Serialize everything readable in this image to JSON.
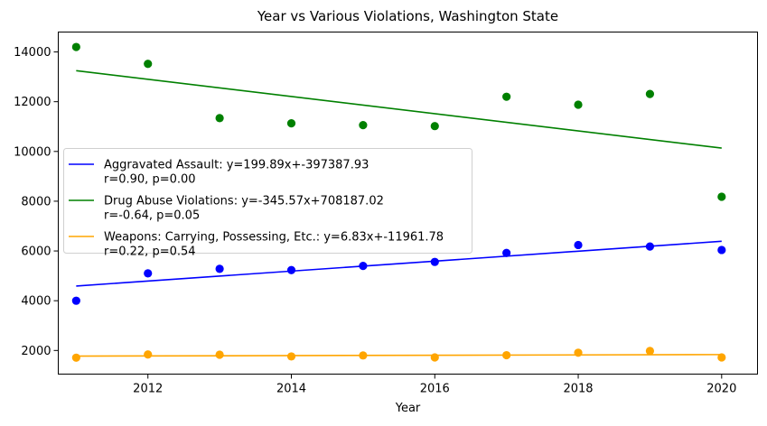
{
  "chart_data": {
    "type": "scatter",
    "title": "Year vs Various Violations, Washington State",
    "xlabel": "Year",
    "ylabel": "",
    "xlim": [
      2010.75,
      2020.5
    ],
    "ylim": [
      1050,
      14800
    ],
    "xticks": [
      2012,
      2014,
      2016,
      2018,
      2020
    ],
    "yticks": [
      2000,
      4000,
      6000,
      8000,
      10000,
      12000,
      14000
    ],
    "x": [
      2011,
      2012,
      2013,
      2014,
      2015,
      2016,
      2017,
      2018,
      2019,
      2020
    ],
    "series": [
      {
        "color": "#0000ff",
        "values": [
          4000,
          5100,
          5280,
          5230,
          5400,
          5560,
          5920,
          6240,
          6180,
          6040
        ],
        "fit": {
          "slope": 199.89,
          "intercept": -397387.93
        },
        "legend_line1": "Aggravated Assault: y=199.89x+-397387.93",
        "legend_line2": "r=0.90, p=0.00"
      },
      {
        "color": "#008000",
        "values": [
          14200,
          13520,
          11340,
          11130,
          11060,
          11020,
          12200,
          11880,
          12310,
          8180
        ],
        "fit": {
          "slope": -345.57,
          "intercept": 708187.02
        },
        "legend_line1": "Drug Abuse Violations: y=-345.57x+708187.02",
        "legend_line2": "r=-0.64, p=0.05"
      },
      {
        "color": "#ffa500",
        "values": [
          1710,
          1840,
          1830,
          1760,
          1800,
          1720,
          1810,
          1910,
          1980,
          1720
        ],
        "fit": {
          "slope": 6.83,
          "intercept": -11961.78
        },
        "legend_line1": "Weapons: Carrying, Possessing, Etc.: y=6.83x+-11961.78",
        "legend_line2": "r=0.22, p=0.54"
      }
    ],
    "legend_placement": "center-left",
    "grid": false
  }
}
